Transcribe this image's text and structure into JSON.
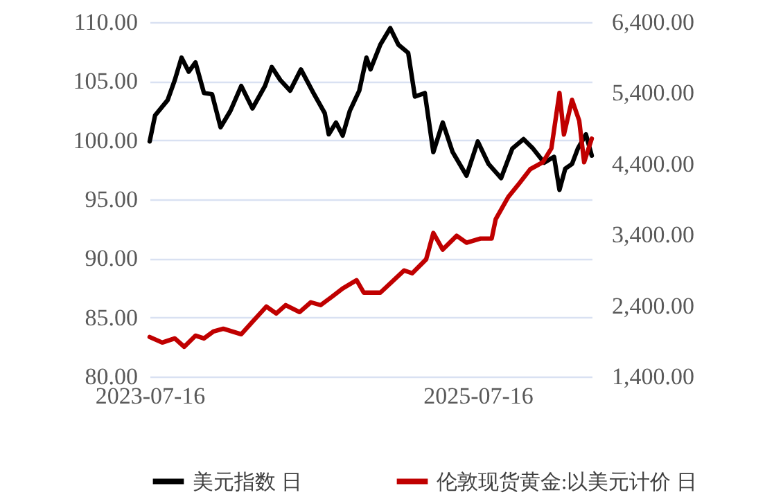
{
  "chart_data": {
    "type": "line",
    "xlim": [
      "2023-07-16",
      "2026-03-27"
    ],
    "xticks": [
      "2023-07-16",
      "2025-07-16"
    ],
    "ylim": [
      80,
      110
    ],
    "yticks": [
      {
        "value": 80,
        "label": "80.00"
      },
      {
        "value": 85,
        "label": "85.00"
      },
      {
        "value": 90,
        "label": "90.00"
      },
      {
        "value": 95,
        "label": "95.00"
      },
      {
        "value": 100,
        "label": "100.00"
      },
      {
        "value": 105,
        "label": "105.00"
      },
      {
        "value": 110,
        "label": "110.00"
      }
    ],
    "y2lim": [
      1400,
      6400
    ],
    "y2ticks": [
      {
        "value": 1400,
        "label": "1,400.00"
      },
      {
        "value": 2400,
        "label": "2,400.00"
      },
      {
        "value": 3400,
        "label": "3,400.00"
      },
      {
        "value": 4400,
        "label": "4,400.00"
      },
      {
        "value": 5400,
        "label": "5,400.00"
      },
      {
        "value": 6400,
        "label": "6,400.00"
      }
    ],
    "grid": "y",
    "legend": "bottom",
    "series": [
      {
        "name": "美元指数 日",
        "color": "#000000",
        "x": [
          "2023-07-16",
          "2023-07-28",
          "2023-08-25",
          "2023-09-10",
          "2023-09-25",
          "2023-10-11",
          "2023-10-26",
          "2023-11-14",
          "2023-12-02",
          "2023-12-21",
          "2024-01-12",
          "2024-02-05",
          "2024-03-01",
          "2024-03-29",
          "2024-04-13",
          "2024-05-02",
          "2024-05-24",
          "2024-06-17",
          "2024-07-15",
          "2024-08-09",
          "2024-08-18",
          "2024-09-03",
          "2024-09-18",
          "2024-10-04",
          "2024-10-25",
          "2024-11-10",
          "2024-11-19",
          "2024-12-11",
          "2025-01-02",
          "2025-01-20",
          "2025-02-11",
          "2025-02-26",
          "2025-03-20",
          "2025-04-08",
          "2025-04-29",
          "2025-05-21",
          "2025-06-21",
          "2025-07-16",
          "2025-08-09",
          "2025-09-06",
          "2025-10-01",
          "2025-10-26",
          "2025-11-16",
          "2025-12-11",
          "2026-01-02",
          "2026-01-14",
          "2026-01-27",
          "2026-02-11",
          "2026-02-24",
          "2026-03-14",
          "2026-03-27"
        ],
        "values": [
          99.9,
          102.1,
          103.4,
          105.1,
          107,
          105.8,
          106.6,
          104,
          103.9,
          101.1,
          102.5,
          104.6,
          102.7,
          104.6,
          106.2,
          105.1,
          104.2,
          106,
          104,
          102.3,
          100.5,
          101.5,
          100.4,
          102.5,
          104.2,
          107,
          106,
          108.1,
          109.5,
          108.1,
          107.4,
          103.7,
          104,
          99,
          101.5,
          99,
          97,
          99.9,
          98,
          96.8,
          99.3,
          100.1,
          99.3,
          98.1,
          98.6,
          95.8,
          97.6,
          98,
          99.3,
          100.5,
          98.7
        ]
      },
      {
        "name": "伦敦现货黄金:以美元计价 日",
        "color": "#c00000",
        "axis": "y2",
        "x": [
          "2023-07-16",
          "2023-08-13",
          "2023-09-10",
          "2023-10-01",
          "2023-10-26",
          "2023-11-14",
          "2023-12-05",
          "2023-12-27",
          "2024-02-05",
          "2024-03-01",
          "2024-04-01",
          "2024-04-23",
          "2024-05-14",
          "2024-06-14",
          "2024-07-09",
          "2024-07-31",
          "2024-08-25",
          "2024-09-18",
          "2024-10-19",
          "2024-11-04",
          "2024-12-11",
          "2025-02-02",
          "2025-02-20",
          "2025-03-23",
          "2025-04-08",
          "2025-04-29",
          "2025-05-30",
          "2025-06-21",
          "2025-07-22",
          "2025-08-16",
          "2025-08-25",
          "2025-09-22",
          "2025-10-17",
          "2025-11-10",
          "2025-12-08",
          "2025-12-27",
          "2026-01-14",
          "2026-01-24",
          "2026-02-11",
          "2026-02-27",
          "2026-03-10",
          "2026-03-27"
        ],
        "values": [
          1958,
          1880,
          1938,
          1820,
          1977,
          1938,
          2036,
          2075,
          1997,
          2173,
          2388,
          2290,
          2408,
          2310,
          2447,
          2408,
          2525,
          2643,
          2760,
          2584,
          2584,
          2897,
          2858,
          3054,
          3426,
          3191,
          3386,
          3289,
          3347,
          3347,
          3621,
          3934,
          4130,
          4326,
          4424,
          4619,
          5402,
          4815,
          5304,
          5011,
          4424,
          4756
        ]
      }
    ]
  }
}
